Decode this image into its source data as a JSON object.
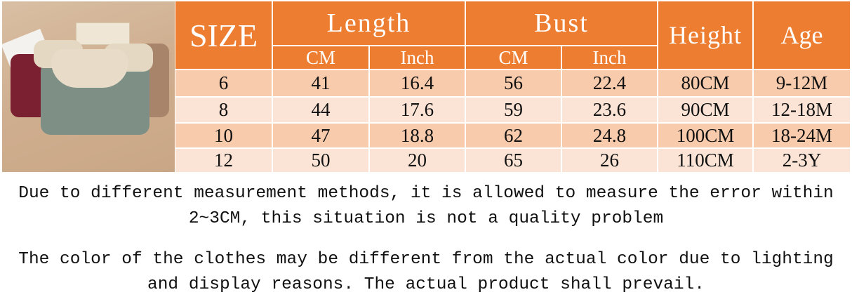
{
  "table": {
    "headers": {
      "size": "SIZE",
      "length": "Length",
      "bust": "Bust",
      "height": "Height",
      "age": "Age",
      "cm": "CM",
      "inch": "Inch"
    },
    "rows": [
      [
        "6",
        "41",
        "16.4",
        "56",
        "22.4",
        "80CM",
        "9-12M"
      ],
      [
        "8",
        "44",
        "17.6",
        "59",
        "23.6",
        "90CM",
        "12-18M"
      ],
      [
        "10",
        "47",
        "18.8",
        "62",
        "24.8",
        "100CM",
        "18-24M"
      ],
      [
        "12",
        "50",
        "20",
        "65",
        "26",
        "110CM",
        "2-3Y"
      ]
    ]
  },
  "notes": [
    "Due to different measurement methods, it is allowed to measure the error within",
    "2~3CM, this situation is not a quality problem",
    "The color of the clothes may be different from the actual color due to lighting",
    "and display reasons. The actual product shall prevail."
  ],
  "colors": {
    "header": "#ED7D31",
    "row_dark": "#F8CBAD",
    "row_light": "#FBE4D5"
  }
}
